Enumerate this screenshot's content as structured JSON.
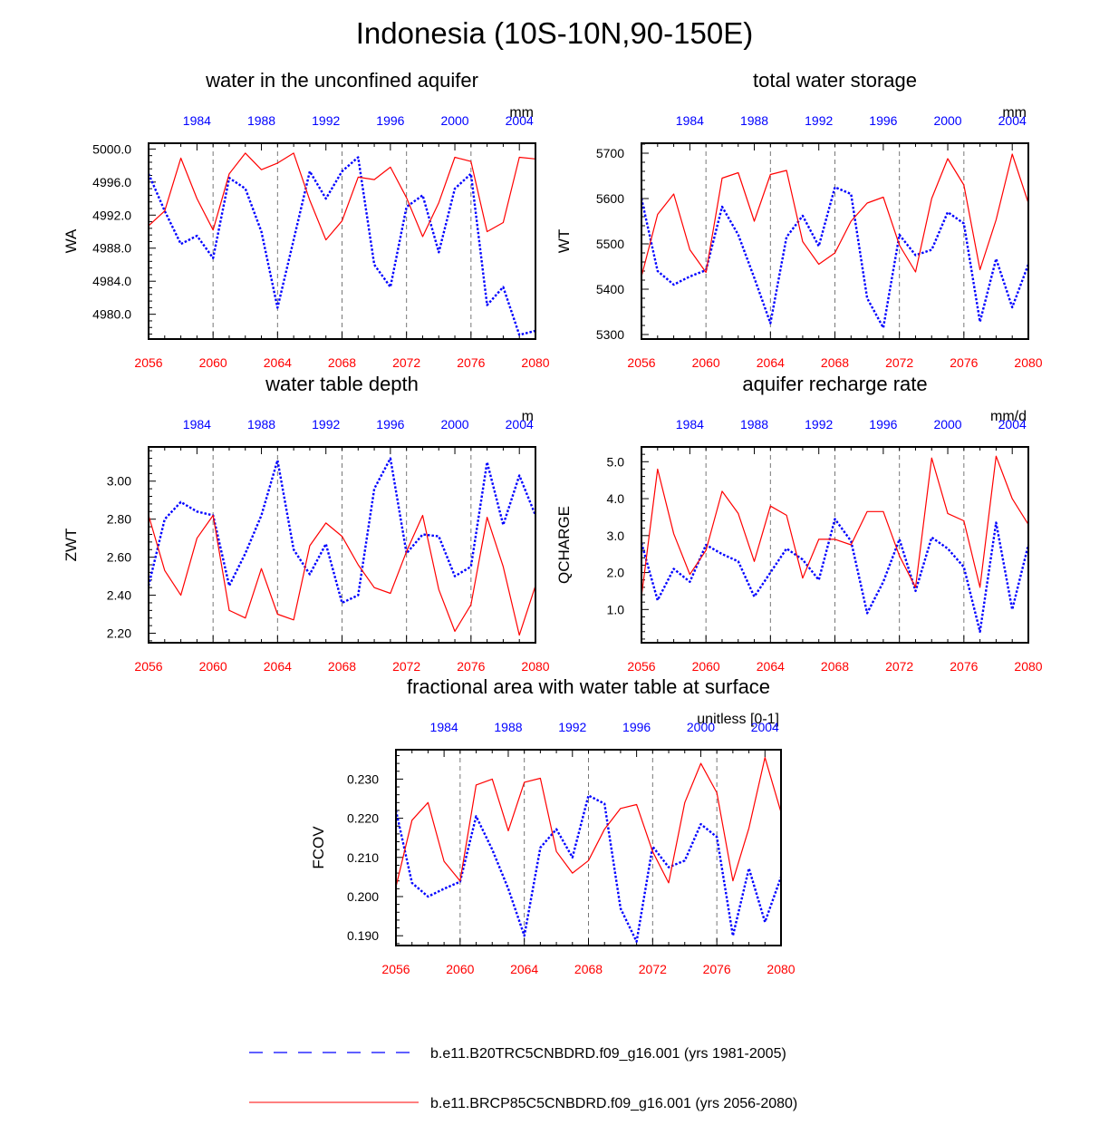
{
  "title": "Indonesia (10S-10N,90-150E)",
  "colors": {
    "historical": "#0000ff",
    "future": "#ff0000",
    "axis": "#000000",
    "grid": "#777777"
  },
  "legend": [
    {
      "label": "b.e11.B20TRC5CNBDRD.f09_g16.001 (yrs 1981-2005)",
      "style": "dashed",
      "color": "#0000ff"
    },
    {
      "label": "b.e11.BRCP85C5CNBDRD.f09_g16.001 (yrs 2056-2080)",
      "style": "solid",
      "color": "#ff0000"
    }
  ],
  "chart_data": [
    {
      "type": "line",
      "title": "water in the unconfined aquifer",
      "ylabel": "WA",
      "units": "mm",
      "x_bottom": {
        "range": [
          2056,
          2080
        ],
        "ticks": [
          2056,
          2060,
          2064,
          2068,
          2072,
          2076,
          2080
        ]
      },
      "x_top": {
        "range": [
          1981,
          2005
        ],
        "ticks": [
          1984,
          1988,
          1992,
          1996,
          2000,
          2004
        ]
      },
      "ylim": [
        4977,
        5000.7
      ],
      "yticks": [
        4980.0,
        4984.0,
        4988.0,
        4992.0,
        4996.0,
        5000.0
      ],
      "ytick_labels": [
        "4980.0",
        "4984.0",
        "4988.0",
        "4992.0",
        "4996.0",
        "5000.0"
      ],
      "grid": "vertical dashed at bottom ticks",
      "series": [
        {
          "name": "b.e11.B20TRC5CNBDRD.f09_g16.001 (yrs 1981-2005)",
          "style": "dotted",
          "color": "#0000ff",
          "values": [
            4997.0,
            4992.5,
            4988.5,
            4989.5,
            4986.8,
            4996.5,
            4995.2,
            4990.0,
            4980.8,
            4989.0,
            4997.3,
            4994.0,
            4997.3,
            4999.0,
            4986.0,
            4983.3,
            4993.0,
            4994.4,
            4987.5,
            4995.2,
            4997.0,
            4981.1,
            4983.3,
            4977.5,
            4978.0
          ]
        },
        {
          "name": "b.e11.BRCP85C5CNBDRD.f09_g16.001 (yrs 2056-2080)",
          "style": "solid",
          "color": "#ff0000",
          "values": [
            4990.7,
            4992.5,
            4998.9,
            4994.0,
            4990.2,
            4997.0,
            4999.5,
            4997.5,
            4998.3,
            4999.5,
            4993.8,
            4989.0,
            4991.3,
            4996.6,
            4996.3,
            4997.8,
            4994.1,
            4989.4,
            4993.5,
            4999.0,
            4998.5,
            4990.0,
            4991.1,
            4999.0,
            4998.8
          ]
        }
      ]
    },
    {
      "type": "line",
      "title": "total water storage",
      "ylabel": "WT",
      "units": "mm",
      "x_bottom": {
        "range": [
          2056,
          2080
        ],
        "ticks": [
          2056,
          2060,
          2064,
          2068,
          2072,
          2076,
          2080
        ]
      },
      "x_top": {
        "range": [
          1981,
          2005
        ],
        "ticks": [
          1984,
          1988,
          1992,
          1996,
          2000,
          2004
        ]
      },
      "ylim": [
        5290,
        5722
      ],
      "yticks": [
        5300,
        5400,
        5500,
        5600,
        5700
      ],
      "ytick_labels": [
        "5300",
        "5400",
        "5500",
        "5600",
        "5700"
      ],
      "grid": "vertical dashed at bottom ticks",
      "series": [
        {
          "name": "b.e11.B20TRC5CNBDRD.f09_g16.001 (yrs 1981-2005)",
          "style": "dotted",
          "color": "#0000ff",
          "values": [
            5600,
            5440,
            5410,
            5428,
            5442,
            5582,
            5520,
            5425,
            5325,
            5515,
            5562,
            5495,
            5625,
            5610,
            5380,
            5315,
            5520,
            5475,
            5487,
            5570,
            5545,
            5328,
            5467,
            5360,
            5455
          ]
        },
        {
          "name": "b.e11.BRCP85C5CNBDRD.f09_g16.001 (yrs 2056-2080)",
          "style": "solid",
          "color": "#ff0000",
          "values": [
            5428,
            5565,
            5610,
            5487,
            5437,
            5645,
            5657,
            5550,
            5653,
            5662,
            5505,
            5455,
            5480,
            5550,
            5590,
            5603,
            5497,
            5438,
            5600,
            5688,
            5630,
            5443,
            5553,
            5698,
            5590
          ]
        }
      ]
    },
    {
      "type": "line",
      "title": "water table depth",
      "ylabel": "ZWT",
      "units": "m",
      "x_bottom": {
        "range": [
          2056,
          2080
        ],
        "ticks": [
          2056,
          2060,
          2064,
          2068,
          2072,
          2076,
          2080
        ]
      },
      "x_top": {
        "range": [
          1981,
          2005
        ],
        "ticks": [
          1984,
          1988,
          1992,
          1996,
          2000,
          2004
        ]
      },
      "ylim": [
        2.15,
        3.18
      ],
      "yticks": [
        2.2,
        2.4,
        2.6,
        2.8,
        3.0
      ],
      "ytick_labels": [
        "2.20",
        "2.40",
        "2.60",
        "2.80",
        "3.00"
      ],
      "grid": "vertical dashed at bottom ticks",
      "series": [
        {
          "name": "b.e11.B20TRC5CNBDRD.f09_g16.001 (yrs 1981-2005)",
          "style": "dotted",
          "color": "#0000ff",
          "values": [
            2.45,
            2.8,
            2.89,
            2.84,
            2.82,
            2.45,
            2.62,
            2.82,
            3.11,
            2.64,
            2.51,
            2.67,
            2.36,
            2.4,
            2.96,
            3.12,
            2.62,
            2.72,
            2.71,
            2.5,
            2.55,
            3.1,
            2.77,
            3.03,
            2.82
          ]
        },
        {
          "name": "b.e11.BRCP85C5CNBDRD.f09_g16.001 (yrs 2056-2080)",
          "style": "solid",
          "color": "#ff0000",
          "values": [
            2.82,
            2.53,
            2.4,
            2.7,
            2.82,
            2.32,
            2.28,
            2.54,
            2.3,
            2.27,
            2.66,
            2.78,
            2.71,
            2.56,
            2.44,
            2.41,
            2.63,
            2.82,
            2.43,
            2.21,
            2.35,
            2.81,
            2.55,
            2.19,
            2.45
          ]
        }
      ]
    },
    {
      "type": "line",
      "title": "aquifer recharge rate",
      "ylabel": "QCHARGE",
      "units": "mm/d",
      "x_bottom": {
        "range": [
          2056,
          2080
        ],
        "ticks": [
          2056,
          2060,
          2064,
          2068,
          2072,
          2076,
          2080
        ]
      },
      "x_top": {
        "range": [
          1981,
          2005
        ],
        "ticks": [
          1984,
          1988,
          1992,
          1996,
          2000,
          2004
        ]
      },
      "ylim": [
        0.1,
        5.4
      ],
      "yticks": [
        1.0,
        2.0,
        3.0,
        4.0,
        5.0
      ],
      "ytick_labels": [
        "1.0",
        "2.0",
        "3.0",
        "4.0",
        "5.0"
      ],
      "grid": "vertical dashed at bottom ticks",
      "series": [
        {
          "name": "b.e11.B20TRC5CNBDRD.f09_g16.001 (yrs 1981-2005)",
          "style": "dotted",
          "color": "#0000ff",
          "values": [
            2.8,
            1.25,
            2.1,
            1.75,
            2.75,
            2.5,
            2.3,
            1.35,
            2.0,
            2.65,
            2.35,
            1.8,
            3.45,
            2.85,
            0.9,
            1.75,
            2.9,
            1.5,
            2.95,
            2.65,
            2.15,
            0.4,
            3.35,
            1.0,
            2.75
          ]
        },
        {
          "name": "b.e11.BRCP85C5CNBDRD.f09_g16.001 (yrs 2056-2080)",
          "style": "solid",
          "color": "#ff0000",
          "values": [
            1.35,
            4.8,
            3.05,
            1.95,
            2.6,
            4.2,
            3.6,
            2.3,
            3.8,
            3.55,
            1.85,
            2.9,
            2.9,
            2.75,
            3.65,
            3.65,
            2.45,
            1.6,
            5.1,
            3.6,
            3.4,
            1.6,
            5.15,
            4.0,
            3.3
          ]
        }
      ]
    },
    {
      "type": "line",
      "title": "fractional area with water table at surface",
      "ylabel": "FCOV",
      "units": "unitless [0-1]",
      "x_bottom": {
        "range": [
          2056,
          2080
        ],
        "ticks": [
          2056,
          2060,
          2064,
          2068,
          2072,
          2076,
          2080
        ]
      },
      "x_top": {
        "range": [
          1981,
          2005
        ],
        "ticks": [
          1984,
          1988,
          1992,
          1996,
          2000,
          2004
        ]
      },
      "ylim": [
        0.1875,
        0.2375
      ],
      "yticks": [
        0.19,
        0.2,
        0.21,
        0.22,
        0.23
      ],
      "ytick_labels": [
        "0.190",
        "0.200",
        "0.210",
        "0.220",
        "0.230"
      ],
      "grid": "vertical dashed at bottom ticks",
      "series": [
        {
          "name": "b.e11.B20TRC5CNBDRD.f09_g16.001 (yrs 1981-2005)",
          "style": "dotted",
          "color": "#0000ff",
          "values": [
            0.222,
            0.2035,
            0.2,
            0.202,
            0.2038,
            0.2205,
            0.212,
            0.202,
            0.19,
            0.2125,
            0.2172,
            0.21,
            0.2258,
            0.2237,
            0.197,
            0.1885,
            0.2128,
            0.2075,
            0.2092,
            0.2185,
            0.2152,
            0.19,
            0.2072,
            0.1935,
            0.205
          ]
        },
        {
          "name": "b.e11.BRCP85C5CNBDRD.f09_g16.001 (yrs 2056-2080)",
          "style": "solid",
          "color": "#ff0000",
          "values": [
            0.2025,
            0.2195,
            0.224,
            0.209,
            0.204,
            0.2285,
            0.23,
            0.2168,
            0.2292,
            0.2302,
            0.2115,
            0.206,
            0.2092,
            0.2172,
            0.2225,
            0.2235,
            0.2115,
            0.2035,
            0.224,
            0.234,
            0.2265,
            0.204,
            0.2175,
            0.2355,
            0.2215
          ]
        }
      ]
    }
  ]
}
